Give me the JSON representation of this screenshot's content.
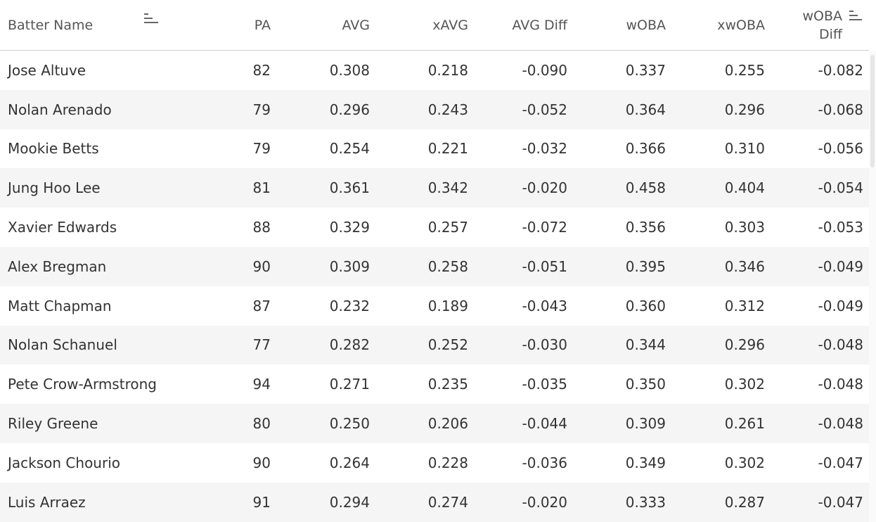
{
  "columns": {
    "name": "Batter Name",
    "pa": "PA",
    "avg": "AVG",
    "xavg": "xAVG",
    "avg_diff": "AVG Diff",
    "woba": "wOBA",
    "xwoba": "xwOBA",
    "woba_diff_line1": "wOBA",
    "woba_diff_line2": "Diff"
  },
  "rows": [
    {
      "name": "Jose Altuve",
      "pa": "82",
      "avg": "0.308",
      "xavg": "0.218",
      "avg_diff": "-0.090",
      "woba": "0.337",
      "xwoba": "0.255",
      "woba_diff": "-0.082"
    },
    {
      "name": "Nolan Arenado",
      "pa": "79",
      "avg": "0.296",
      "xavg": "0.243",
      "avg_diff": "-0.052",
      "woba": "0.364",
      "xwoba": "0.296",
      "woba_diff": "-0.068"
    },
    {
      "name": "Mookie Betts",
      "pa": "79",
      "avg": "0.254",
      "xavg": "0.221",
      "avg_diff": "-0.032",
      "woba": "0.366",
      "xwoba": "0.310",
      "woba_diff": "-0.056"
    },
    {
      "name": "Jung Hoo Lee",
      "pa": "81",
      "avg": "0.361",
      "xavg": "0.342",
      "avg_diff": "-0.020",
      "woba": "0.458",
      "xwoba": "0.404",
      "woba_diff": "-0.054"
    },
    {
      "name": "Xavier Edwards",
      "pa": "88",
      "avg": "0.329",
      "xavg": "0.257",
      "avg_diff": "-0.072",
      "woba": "0.356",
      "xwoba": "0.303",
      "woba_diff": "-0.053"
    },
    {
      "name": "Alex Bregman",
      "pa": "90",
      "avg": "0.309",
      "xavg": "0.258",
      "avg_diff": "-0.051",
      "woba": "0.395",
      "xwoba": "0.346",
      "woba_diff": "-0.049"
    },
    {
      "name": "Matt Chapman",
      "pa": "87",
      "avg": "0.232",
      "xavg": "0.189",
      "avg_diff": "-0.043",
      "woba": "0.360",
      "xwoba": "0.312",
      "woba_diff": "-0.049"
    },
    {
      "name": "Nolan Schanuel",
      "pa": "77",
      "avg": "0.282",
      "xavg": "0.252",
      "avg_diff": "-0.030",
      "woba": "0.344",
      "xwoba": "0.296",
      "woba_diff": "-0.048"
    },
    {
      "name": "Pete Crow-Armstrong",
      "pa": "94",
      "avg": "0.271",
      "xavg": "0.235",
      "avg_diff": "-0.035",
      "woba": "0.350",
      "xwoba": "0.302",
      "woba_diff": "-0.048"
    },
    {
      "name": "Riley Greene",
      "pa": "80",
      "avg": "0.250",
      "xavg": "0.206",
      "avg_diff": "-0.044",
      "woba": "0.309",
      "xwoba": "0.261",
      "woba_diff": "-0.048"
    },
    {
      "name": "Jackson Chourio",
      "pa": "90",
      "avg": "0.264",
      "xavg": "0.228",
      "avg_diff": "-0.036",
      "woba": "0.349",
      "xwoba": "0.302",
      "woba_diff": "-0.047"
    },
    {
      "name": "Luis Arraez",
      "pa": "91",
      "avg": "0.294",
      "xavg": "0.274",
      "avg_diff": "-0.020",
      "woba": "0.333",
      "xwoba": "0.287",
      "woba_diff": "-0.047"
    }
  ]
}
